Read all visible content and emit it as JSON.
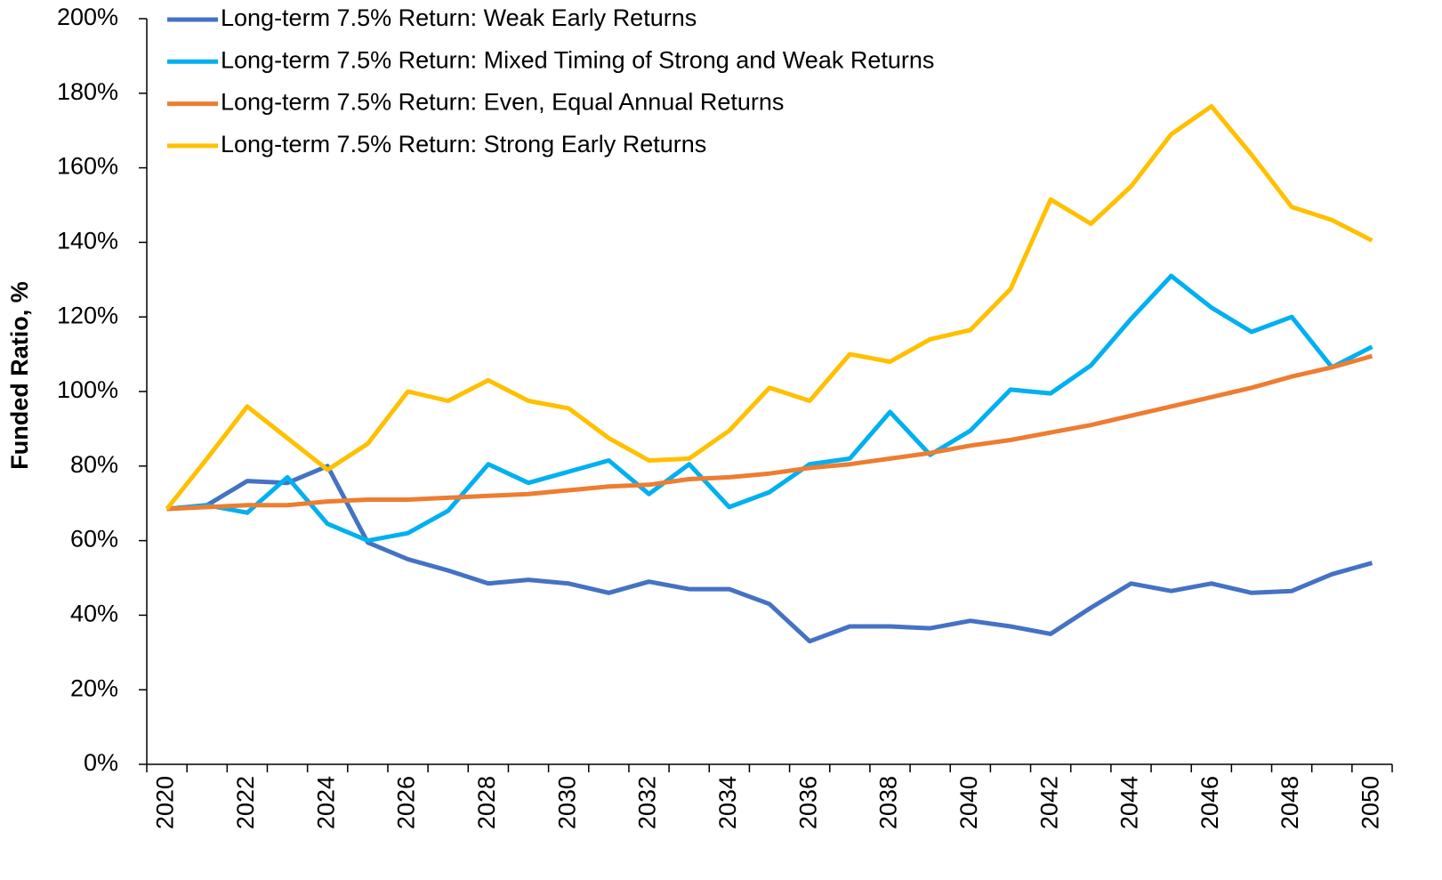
{
  "chart_data": {
    "type": "line",
    "y_label": "Funded Ratio, %",
    "categories": [
      "2020",
      null,
      "2022",
      null,
      "2024",
      null,
      "2026",
      null,
      "2028",
      null,
      "2030",
      null,
      "2032",
      null,
      "2034",
      null,
      "2036",
      null,
      "2038",
      null,
      "2040",
      null,
      "2042",
      null,
      "2044",
      null,
      "2046",
      null,
      "2048",
      null,
      "2050"
    ],
    "series": [
      {
        "name": "Long-term 7.5% Return: Weak Early Returns",
        "color": "#4472c4",
        "values": [
          68.5,
          69.5,
          76,
          75.5,
          80,
          59.5,
          55,
          52,
          48.5,
          49.5,
          48.5,
          46,
          49,
          47,
          47,
          43,
          33,
          37,
          37,
          36.5,
          38.5,
          37,
          35,
          42,
          48.5,
          46.5,
          48.5,
          46,
          46.5,
          51,
          54
        ]
      },
      {
        "name": "Long-term 7.5% Return: Mixed Timing of Strong and Weak Returns",
        "color": "#00b0f0",
        "values": [
          68.5,
          69.5,
          67.5,
          77,
          64.5,
          60,
          62,
          68,
          80.5,
          75.5,
          78.5,
          81.5,
          72.5,
          80.5,
          69,
          73,
          80.5,
          82,
          94.5,
          83,
          89.5,
          100.5,
          99.5,
          107,
          119.5,
          131,
          122.5,
          116,
          120,
          106.5,
          112
        ]
      },
      {
        "name": "Long-term 7.5% Return: Even, Equal Annual Returns",
        "color": "#ed7d31",
        "values": [
          68.5,
          69,
          69.5,
          69.5,
          70.5,
          71,
          71,
          71.5,
          72,
          72.5,
          73.5,
          74.5,
          75,
          76.5,
          77,
          78,
          79.5,
          80.5,
          82,
          83.5,
          85.5,
          87,
          89,
          91,
          93.5,
          96,
          98.5,
          101,
          104,
          106.5,
          109.5
        ]
      },
      {
        "name": "Long-term 7.5% Return: Strong Early Returns",
        "color": "#ffc000",
        "values": [
          68.5,
          82,
          96,
          87.5,
          79,
          86,
          100,
          97.5,
          103,
          97.5,
          95.5,
          87.5,
          81.5,
          82,
          89.5,
          101,
          97.5,
          110,
          108,
          114,
          116.5,
          127.5,
          151.5,
          145,
          155,
          169,
          176.5,
          163.5,
          149.5,
          146,
          140.5
        ]
      }
    ],
    "ylim": [
      0,
      200
    ],
    "yticks": [
      {
        "value": 0,
        "label": "0%"
      },
      {
        "value": 20,
        "label": "20%"
      },
      {
        "value": 40,
        "label": "40%"
      },
      {
        "value": 60,
        "label": "60%"
      },
      {
        "value": 80,
        "label": "80%"
      },
      {
        "value": 100,
        "label": "100%"
      },
      {
        "value": 120,
        "label": "120%"
      },
      {
        "value": 140,
        "label": "140%"
      },
      {
        "value": 160,
        "label": "160%"
      },
      {
        "value": 180,
        "label": "180%"
      },
      {
        "value": 200,
        "label": "200%"
      }
    ],
    "grid": false,
    "legend": "top-left"
  }
}
